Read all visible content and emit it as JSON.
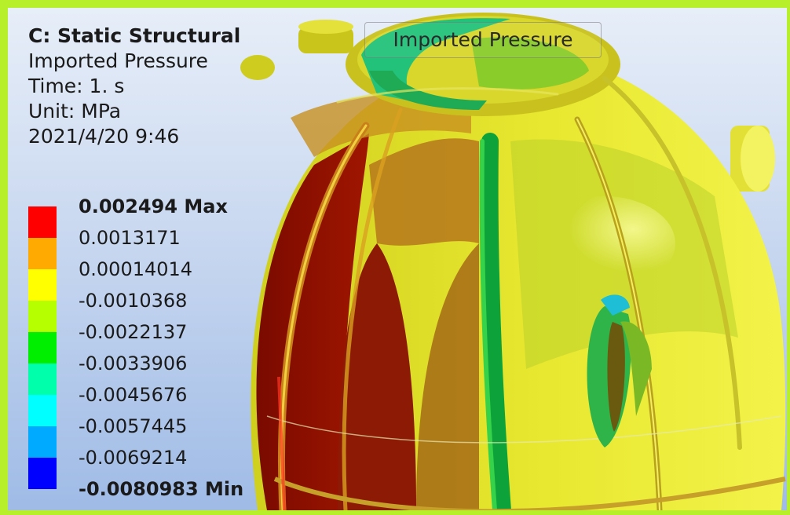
{
  "header": {
    "analysis": "C: Static Structural",
    "result": "Imported Pressure",
    "time": "Time: 1. s",
    "unit": "Unit: MPa",
    "date": "2021/4/20 9:46"
  },
  "object_label": "Imported Pressure",
  "legend": {
    "colors": [
      "#ff0000",
      "#ffaa00",
      "#ffff00",
      "#b5ff00",
      "#00ee00",
      "#00ffaa",
      "#00ffff",
      "#00aaff",
      "#0000ff"
    ],
    "values": [
      {
        "text": "0.002494",
        "suffix": " Max",
        "bold": true
      },
      {
        "text": "0.0013171"
      },
      {
        "text": "0.00014014"
      },
      {
        "text": "-0.0010368"
      },
      {
        "text": "-0.0022137"
      },
      {
        "text": "-0.0033906"
      },
      {
        "text": "-0.0045676"
      },
      {
        "text": "-0.0057445"
      },
      {
        "text": "-0.0069214"
      },
      {
        "text": "-0.0080983",
        "suffix": " Min",
        "bold": true
      }
    ]
  },
  "colors": {
    "frame": "#b7ef2a",
    "dome_base": "#d8d820",
    "dome_red": "#8a0a00",
    "dome_orange": "#b85a10",
    "dome_green": "#35c51a"
  }
}
